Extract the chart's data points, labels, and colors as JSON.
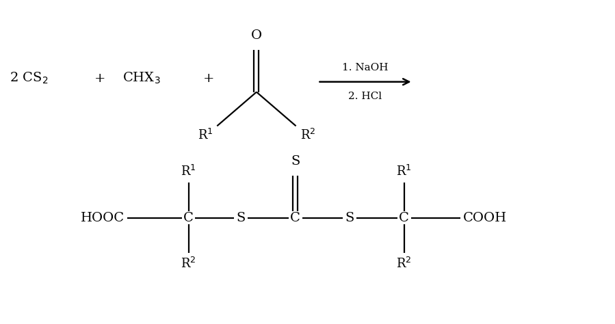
{
  "bg_color": "#ffffff",
  "text_color": "#000000",
  "figsize": [
    8.99,
    4.74
  ],
  "dpi": 100,
  "lw": 1.6,
  "fs": 14,
  "fs_arrow": 11,
  "xlim": [
    0,
    9
  ],
  "ylim": [
    0,
    4.74
  ]
}
